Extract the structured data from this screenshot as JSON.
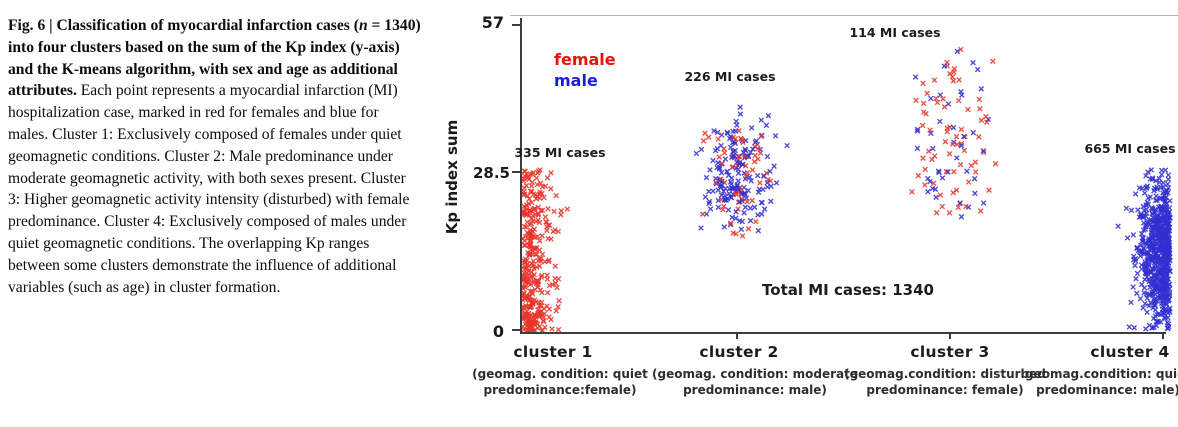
{
  "caption": {
    "bold_prefix": "Fig. 6 | Classification of myocardial infarction cases (",
    "italic_n": "n",
    "bold_suffix": " = 1340) into four clusters based on the sum of the Kp index (y-axis) and the K-means algorithm, with sex and age as additional attributes.",
    "body": " Each point represents a myocardial infarction (MI) hospitalization case, marked in red for females and blue for males. Cluster 1: Exclusively composed of females under quiet geomagnetic conditions. Cluster 2: Male predominance under moderate geomagnetic activity, with both sexes present. Cluster 3: Higher geomagnetic activity intensity (disturbed) with female predominance. Cluster 4: Exclusively composed of males under quiet geomagnetic conditions. The overlapping Kp ranges between some clusters demonstrate the influence of additional variables (such as age) in cluster formation."
  },
  "chart_data": {
    "type": "scatter",
    "title": "",
    "xlabel": "",
    "ylabel": "Kp index sum",
    "ylim": [
      0,
      57
    ],
    "yticks": [
      0,
      28.5,
      57
    ],
    "ytick_labels": [
      "57",
      "28.5",
      "0"
    ],
    "grid": false,
    "marker": "x",
    "legend_position": "upper-left-inside",
    "legend": [
      {
        "label": "female",
        "color": "#ee0f0f"
      },
      {
        "label": "male",
        "color": "#1d1de0"
      }
    ],
    "point_colors": {
      "female": "#e8352b",
      "male": "#3230d0"
    },
    "total_annotation": "Total MI cases: 1340",
    "total_cases": 1340,
    "clusters": [
      {
        "label": "cluster 1",
        "cases": 335,
        "cases_label": "335 MI cases",
        "female_cases": 335,
        "male_cases": 0,
        "kp_range": [
          0,
          30
        ],
        "geomag_condition": "quiet",
        "predominance": "female",
        "condition_line1": "(geomag. condition: quiet",
        "condition_line2": "predominance:female)"
      },
      {
        "label": "cluster 2",
        "cases": 226,
        "cases_label": "226 MI cases",
        "female_cases": 63,
        "male_cases": 163,
        "kp_range": [
          17.5,
          44
        ],
        "geomag_condition": "moderate",
        "predominance": "male",
        "condition_line1": "(geomag. condition: moderate",
        "condition_line2": "predominance: male)"
      },
      {
        "label": "cluster 3",
        "cases": 114,
        "cases_label": "114 MI cases",
        "female_cases": 72,
        "male_cases": 42,
        "kp_range": [
          21,
          57.5
        ],
        "geomag_condition": "disturbed",
        "predominance": "female",
        "condition_line1": "(geomag.condition: disturbed",
        "condition_line2": "predominance: female)"
      },
      {
        "label": "cluster 4",
        "cases": 665,
        "cases_label": "665 MI cases",
        "female_cases": 0,
        "male_cases": 665,
        "kp_range": [
          0,
          31
        ],
        "geomag_condition": "quiet",
        "predominance": "male",
        "condition_line1": "geomag.condition: quiet",
        "condition_line2": "predominance: male)"
      }
    ]
  }
}
